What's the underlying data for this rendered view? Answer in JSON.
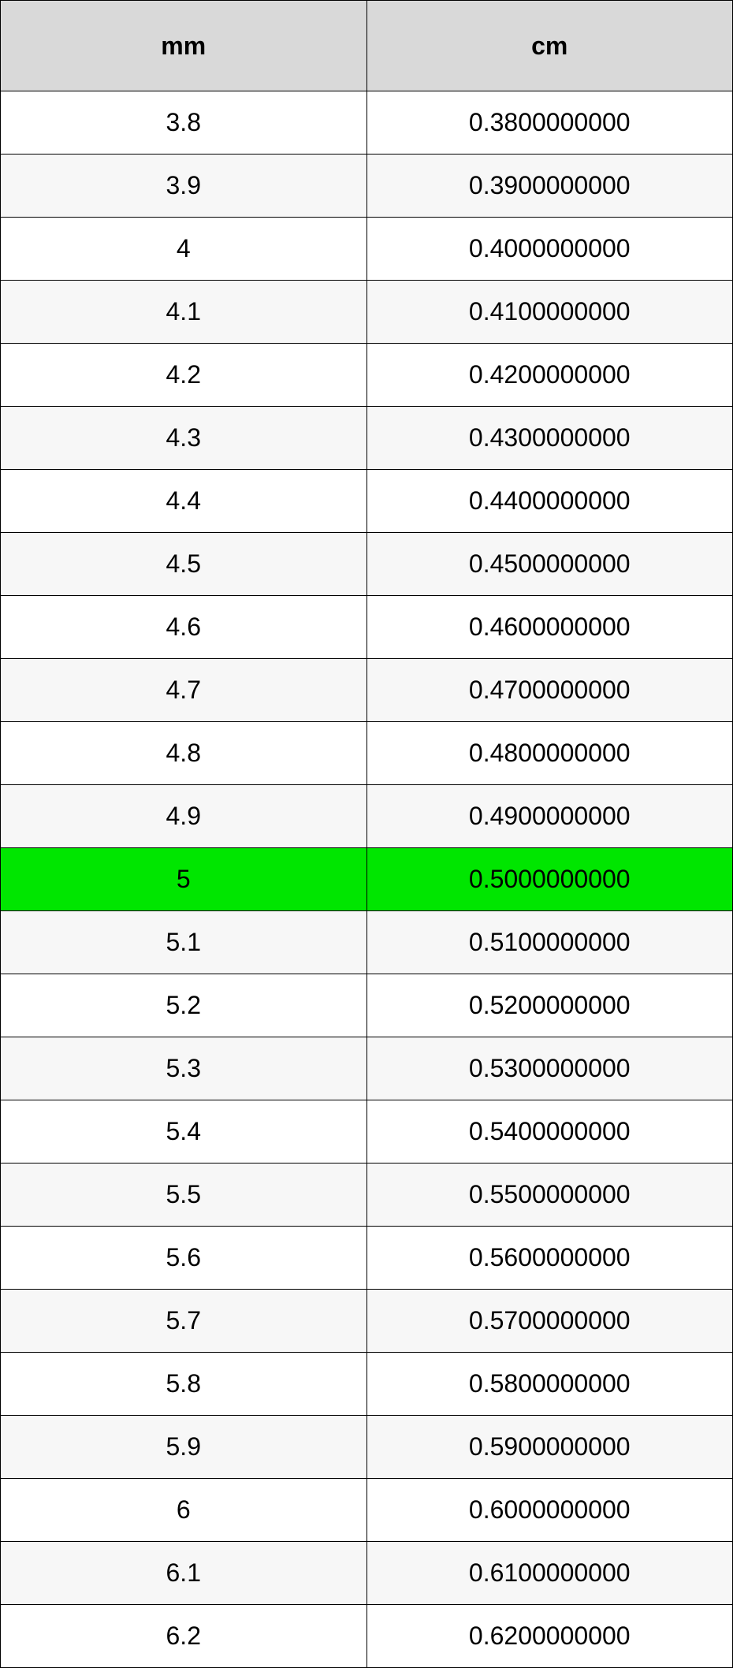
{
  "table": {
    "type": "table",
    "columns": [
      "mm",
      "cm"
    ],
    "header_bg": "#d9d9d9",
    "header_font_weight": "bold",
    "header_fontsize": 32,
    "cell_fontsize": 32,
    "border_color": "#000000",
    "row_bg_even": "#ffffff",
    "row_bg_odd": "#f7f7f7",
    "highlight_bg": "#00e600",
    "highlight_row_index": 12,
    "column_align": [
      "center",
      "center"
    ],
    "rows": [
      [
        "3.8",
        "0.3800000000"
      ],
      [
        "3.9",
        "0.3900000000"
      ],
      [
        "4",
        "0.4000000000"
      ],
      [
        "4.1",
        "0.4100000000"
      ],
      [
        "4.2",
        "0.4200000000"
      ],
      [
        "4.3",
        "0.4300000000"
      ],
      [
        "4.4",
        "0.4400000000"
      ],
      [
        "4.5",
        "0.4500000000"
      ],
      [
        "4.6",
        "0.4600000000"
      ],
      [
        "4.7",
        "0.4700000000"
      ],
      [
        "4.8",
        "0.4800000000"
      ],
      [
        "4.9",
        "0.4900000000"
      ],
      [
        "5",
        "0.5000000000"
      ],
      [
        "5.1",
        "0.5100000000"
      ],
      [
        "5.2",
        "0.5200000000"
      ],
      [
        "5.3",
        "0.5300000000"
      ],
      [
        "5.4",
        "0.5400000000"
      ],
      [
        "5.5",
        "0.5500000000"
      ],
      [
        "5.6",
        "0.5600000000"
      ],
      [
        "5.7",
        "0.5700000000"
      ],
      [
        "5.8",
        "0.5800000000"
      ],
      [
        "5.9",
        "0.5900000000"
      ],
      [
        "6",
        "0.6000000000"
      ],
      [
        "6.1",
        "0.6100000000"
      ],
      [
        "6.2",
        "0.6200000000"
      ]
    ]
  }
}
